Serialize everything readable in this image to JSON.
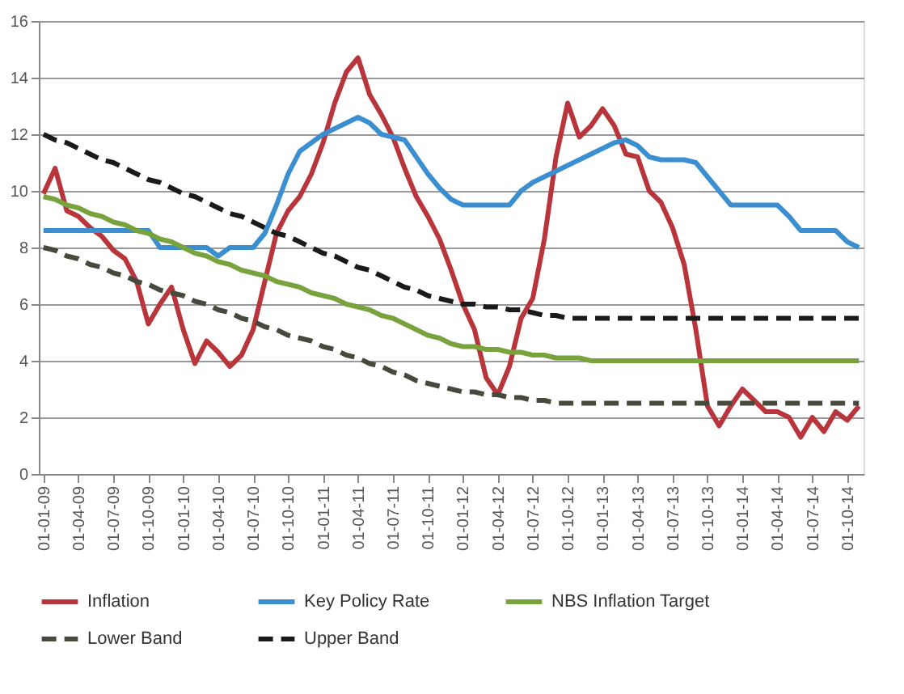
{
  "chart_data": {
    "type": "line",
    "categories": [
      "01-01-09",
      null,
      null,
      "01-04-09",
      null,
      null,
      "01-07-09",
      null,
      null,
      "01-10-09",
      null,
      null,
      "01-01-10",
      null,
      null,
      "01-04-10",
      null,
      null,
      "01-07-10",
      null,
      null,
      "01-10-10",
      null,
      null,
      "01-01-11",
      null,
      null,
      "01-04-11",
      null,
      null,
      "01-07-11",
      null,
      null,
      "01-10-11",
      null,
      null,
      "01-01-12",
      null,
      null,
      "01-04-12",
      null,
      null,
      "01-07-12",
      null,
      null,
      "01-10-12",
      null,
      null,
      "01-01-13",
      null,
      null,
      "01-04-13",
      null,
      null,
      "01-07-13",
      null,
      null,
      "01-10-13",
      null,
      null,
      "01-01-14",
      null,
      null,
      "01-04-14",
      null,
      null,
      "01-07-14",
      null,
      null,
      "01-10-14",
      null
    ],
    "series": [
      {
        "name": "Inflation",
        "color": "#b8353c",
        "line_style": "solid",
        "values": [
          9.9,
          10.8,
          9.3,
          9.1,
          8.7,
          8.4,
          7.9,
          7.6,
          6.8,
          5.3,
          6.0,
          6.6,
          5.1,
          3.9,
          4.7,
          4.3,
          3.8,
          4.2,
          5.1,
          6.8,
          8.5,
          9.3,
          9.8,
          10.6,
          11.7,
          13.1,
          14.2,
          14.7,
          13.4,
          12.7,
          11.9,
          10.8,
          9.8,
          9.1,
          8.3,
          7.2,
          6.0,
          5.1,
          3.4,
          2.8,
          3.8,
          5.5,
          6.2,
          8.3,
          11.2,
          13.1,
          11.9,
          12.3,
          12.9,
          12.3,
          11.3,
          11.2,
          10.0,
          9.6,
          8.7,
          7.4,
          5.1,
          2.4,
          1.7,
          2.4,
          3.0,
          2.6,
          2.2,
          2.2,
          2.0,
          1.3,
          2.0,
          1.5,
          2.2,
          1.9,
          2.4
        ]
      },
      {
        "name": "Key Policy Rate",
        "color": "#3b8fd1",
        "line_style": "solid",
        "values": [
          8.6,
          8.6,
          8.6,
          8.6,
          8.6,
          8.6,
          8.6,
          8.6,
          8.6,
          8.6,
          8.0,
          8.0,
          8.0,
          8.0,
          8.0,
          7.7,
          8.0,
          8.0,
          8.0,
          8.5,
          9.5,
          10.6,
          11.4,
          11.7,
          12.0,
          12.2,
          12.4,
          12.6,
          12.4,
          12.0,
          11.9,
          11.8,
          11.2,
          10.6,
          10.1,
          9.7,
          9.5,
          9.5,
          9.5,
          9.5,
          9.5,
          10.0,
          10.3,
          10.5,
          10.7,
          10.9,
          11.1,
          11.3,
          11.5,
          11.7,
          11.8,
          11.6,
          11.2,
          11.1,
          11.1,
          11.1,
          11.0,
          10.5,
          10.0,
          9.5,
          9.5,
          9.5,
          9.5,
          9.5,
          9.1,
          8.6,
          8.6,
          8.6,
          8.6,
          8.2,
          8.0
        ]
      },
      {
        "name": "NBS Inflation Target",
        "color": "#78a33c",
        "line_style": "solid",
        "values": [
          9.8,
          9.7,
          9.5,
          9.4,
          9.2,
          9.1,
          8.9,
          8.8,
          8.6,
          8.5,
          8.3,
          8.2,
          8.0,
          7.8,
          7.7,
          7.5,
          7.4,
          7.2,
          7.1,
          7.0,
          6.8,
          6.7,
          6.6,
          6.4,
          6.3,
          6.2,
          6.0,
          5.9,
          5.8,
          5.6,
          5.5,
          5.3,
          5.1,
          4.9,
          4.8,
          4.6,
          4.5,
          4.5,
          4.4,
          4.4,
          4.3,
          4.3,
          4.2,
          4.2,
          4.1,
          4.1,
          4.1,
          4.0,
          4.0,
          4.0,
          4.0,
          4.0,
          4.0,
          4.0,
          4.0,
          4.0,
          4.0,
          4.0,
          4.0,
          4.0,
          4.0,
          4.0,
          4.0,
          4.0,
          4.0,
          4.0,
          4.0,
          4.0,
          4.0,
          4.0,
          4.0
        ]
      },
      {
        "name": "Lower Band",
        "color": "#454a3c",
        "line_style": "dashed",
        "values": [
          8.0,
          7.9,
          7.7,
          7.6,
          7.4,
          7.3,
          7.1,
          7.0,
          6.8,
          6.7,
          6.5,
          6.4,
          6.3,
          6.1,
          6.0,
          5.8,
          5.7,
          5.5,
          5.4,
          5.2,
          5.1,
          4.9,
          4.8,
          4.7,
          4.5,
          4.4,
          4.2,
          4.1,
          3.9,
          3.8,
          3.6,
          3.5,
          3.3,
          3.2,
          3.1,
          3.0,
          2.9,
          2.9,
          2.8,
          2.8,
          2.7,
          2.7,
          2.6,
          2.6,
          2.5,
          2.5,
          2.5,
          2.5,
          2.5,
          2.5,
          2.5,
          2.5,
          2.5,
          2.5,
          2.5,
          2.5,
          2.5,
          2.5,
          2.5,
          2.5,
          2.5,
          2.5,
          2.5,
          2.5,
          2.5,
          2.5,
          2.5,
          2.5,
          2.5,
          2.5,
          2.5
        ]
      },
      {
        "name": "Upper Band",
        "color": "#1a1a1a",
        "line_style": "dashed",
        "values": [
          12.0,
          11.8,
          11.7,
          11.5,
          11.3,
          11.1,
          11.0,
          10.8,
          10.6,
          10.4,
          10.3,
          10.1,
          9.9,
          9.8,
          9.6,
          9.4,
          9.2,
          9.1,
          8.9,
          8.7,
          8.5,
          8.4,
          8.2,
          8.0,
          7.8,
          7.7,
          7.5,
          7.3,
          7.2,
          7.0,
          6.8,
          6.6,
          6.5,
          6.3,
          6.2,
          6.1,
          6.0,
          6.0,
          5.9,
          5.9,
          5.8,
          5.8,
          5.7,
          5.6,
          5.6,
          5.5,
          5.5,
          5.5,
          5.5,
          5.5,
          5.5,
          5.5,
          5.5,
          5.5,
          5.5,
          5.5,
          5.5,
          5.5,
          5.5,
          5.5,
          5.5,
          5.5,
          5.5,
          5.5,
          5.5,
          5.5,
          5.5,
          5.5,
          5.5,
          5.5,
          5.5
        ]
      }
    ],
    "ylim": [
      0,
      16
    ],
    "yticks": [
      0,
      2,
      4,
      6,
      8,
      10,
      12,
      14,
      16
    ],
    "grid": "y",
    "legend": "bottom",
    "marker": "none"
  }
}
